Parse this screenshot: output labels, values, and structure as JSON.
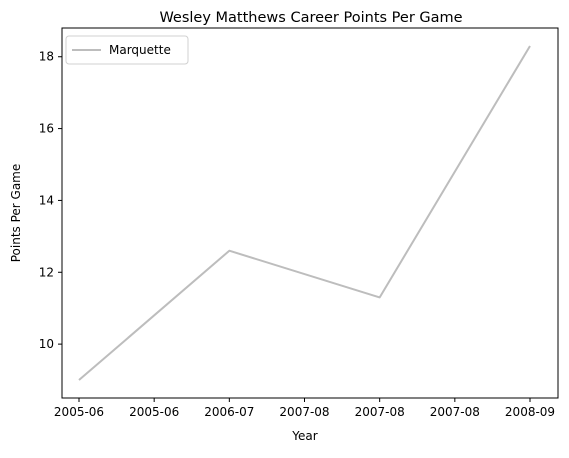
{
  "chart_data": {
    "type": "line",
    "title": "Wesley Matthews Career Points Per Game",
    "xlabel": "Year",
    "ylabel": "Points Per Game",
    "x_tick_labels": [
      "2005-06",
      "2005-06",
      "2006-07",
      "2007-08",
      "2007-08",
      "2007-08",
      "2008-09"
    ],
    "categories": [
      "2005-06",
      "2006-07",
      "2007-08",
      "2008-09"
    ],
    "series": [
      {
        "name": "Marquette",
        "values": [
          9.0,
          12.6,
          11.3,
          18.3
        ],
        "color": "#bdbdbd"
      }
    ],
    "ylim": [
      8.5,
      18.8
    ],
    "y_ticks": [
      10,
      12,
      14,
      16,
      18
    ],
    "grid": false,
    "legend_placement": "top-left"
  }
}
